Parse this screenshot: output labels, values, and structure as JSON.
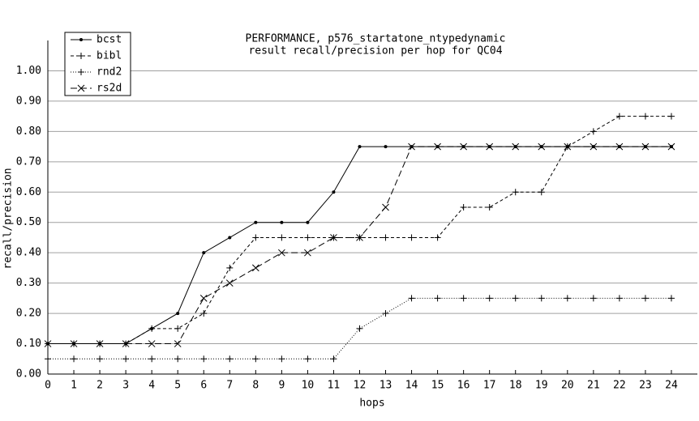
{
  "chart_data": {
    "type": "line",
    "title": "PERFORMANCE, p576_startatone_ntypedynamic",
    "subtitle": "result recall/precision per hop for QC04",
    "x_label": "hops",
    "y_label": "recall/precision",
    "x": [
      0,
      1,
      2,
      3,
      4,
      5,
      6,
      7,
      8,
      9,
      10,
      11,
      12,
      13,
      14,
      15,
      16,
      17,
      18,
      19,
      20,
      21,
      22,
      23,
      24
    ],
    "series": [
      {
        "name": "bcst",
        "color": "#000000",
        "dash": "solid",
        "marker": "dot",
        "values": [
          0.1,
          0.1,
          0.1,
          0.1,
          0.15,
          0.2,
          0.4,
          0.45,
          0.5,
          0.5,
          0.5,
          0.6,
          0.75,
          0.75,
          0.75,
          0.75,
          0.75,
          0.75,
          0.75,
          0.75,
          0.75,
          0.75,
          0.75,
          0.75,
          0.75
        ]
      },
      {
        "name": "bibl",
        "color": "#000000",
        "dash": "dashed",
        "marker": "plus",
        "values": [
          0.1,
          0.1,
          0.1,
          0.1,
          0.15,
          0.15,
          0.2,
          0.35,
          0.45,
          0.45,
          0.45,
          0.45,
          0.45,
          0.45,
          0.45,
          0.45,
          0.55,
          0.55,
          0.6,
          0.6,
          0.75,
          0.8,
          0.85,
          0.85,
          0.85
        ]
      },
      {
        "name": "rnd2",
        "color": "#000000",
        "dash": "dotted",
        "marker": "plus",
        "values": [
          0.05,
          0.05,
          0.05,
          0.05,
          0.05,
          0.05,
          0.05,
          0.05,
          0.05,
          0.05,
          0.05,
          0.05,
          0.15,
          0.2,
          0.25,
          0.25,
          0.25,
          0.25,
          0.25,
          0.25,
          0.25,
          0.25,
          0.25,
          0.25,
          0.25
        ]
      },
      {
        "name": "rs2d",
        "color": "#000000",
        "dash": "longdash",
        "marker": "cross",
        "values": [
          0.1,
          0.1,
          0.1,
          0.1,
          0.1,
          0.1,
          0.25,
          0.3,
          0.35,
          0.4,
          0.4,
          0.45,
          0.45,
          0.55,
          0.75,
          0.75,
          0.75,
          0.75,
          0.75,
          0.75,
          0.75,
          0.75,
          0.75,
          0.75,
          0.75
        ]
      }
    ],
    "xlim": [
      0,
      25
    ],
    "ylim": [
      0,
      1.1
    ],
    "xticks": [
      0,
      1,
      2,
      3,
      4,
      5,
      6,
      7,
      8,
      9,
      10,
      11,
      12,
      13,
      14,
      15,
      16,
      17,
      18,
      19,
      20,
      21,
      22,
      23,
      24
    ],
    "yticks": [
      {
        "value": 0,
        "label": "0.00"
      },
      {
        "value": 0.1,
        "label": "0.10"
      },
      {
        "value": 0.2,
        "label": "0.20"
      },
      {
        "value": 0.3,
        "label": "0.30"
      },
      {
        "value": 0.4,
        "label": "0.40"
      },
      {
        "value": 0.5,
        "label": "0.50"
      },
      {
        "value": 0.6,
        "label": "0.60"
      },
      {
        "value": 0.7,
        "label": "0.70"
      },
      {
        "value": 0.8,
        "label": "0.80"
      },
      {
        "value": 0.9,
        "label": "0.90"
      },
      {
        "value": 1,
        "label": "1.00"
      }
    ],
    "grid": true,
    "legend": "top-left"
  }
}
